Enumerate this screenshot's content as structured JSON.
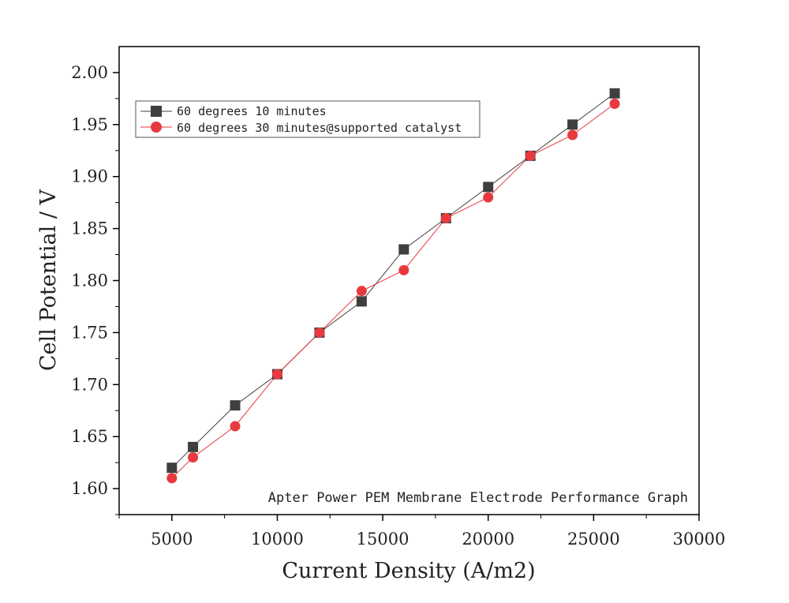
{
  "chart_data": {
    "type": "line",
    "title": "",
    "xlabel": "Current Density (A/m2)",
    "ylabel": "Cell Potential / V",
    "xlim": [
      2500,
      30000
    ],
    "ylim": [
      1.575,
      2.025
    ],
    "xticks": [
      "5000",
      "10000",
      "15000",
      "20000",
      "25000",
      "30000"
    ],
    "yticks": [
      "1.60",
      "1.65",
      "1.70",
      "1.75",
      "1.80",
      "1.85",
      "1.90",
      "1.95",
      "2.00"
    ],
    "grid": false,
    "legend_position": "top-left",
    "annotation": "Apter Power PEM Membrane Electrode Performance Graph",
    "series": [
      {
        "name": "60 degrees 10 minutes",
        "marker": "square",
        "color": "#3f3f3f",
        "x": [
          5000,
          6000,
          8000,
          10000,
          12000,
          14000,
          16000,
          18000,
          20000,
          22000,
          24000,
          26000
        ],
        "y": [
          1.62,
          1.64,
          1.68,
          1.71,
          1.75,
          1.78,
          1.83,
          1.86,
          1.89,
          1.92,
          1.95,
          1.98
        ]
      },
      {
        "name": "60 degrees 30 minutes@supported catalyst",
        "marker": "circle",
        "color": "#e8393f",
        "x": [
          5000,
          6000,
          8000,
          10000,
          12000,
          14000,
          16000,
          18000,
          20000,
          22000,
          24000,
          26000
        ],
        "y": [
          1.61,
          1.63,
          1.66,
          1.71,
          1.75,
          1.79,
          1.81,
          1.86,
          1.88,
          1.92,
          1.94,
          1.97
        ]
      }
    ]
  }
}
